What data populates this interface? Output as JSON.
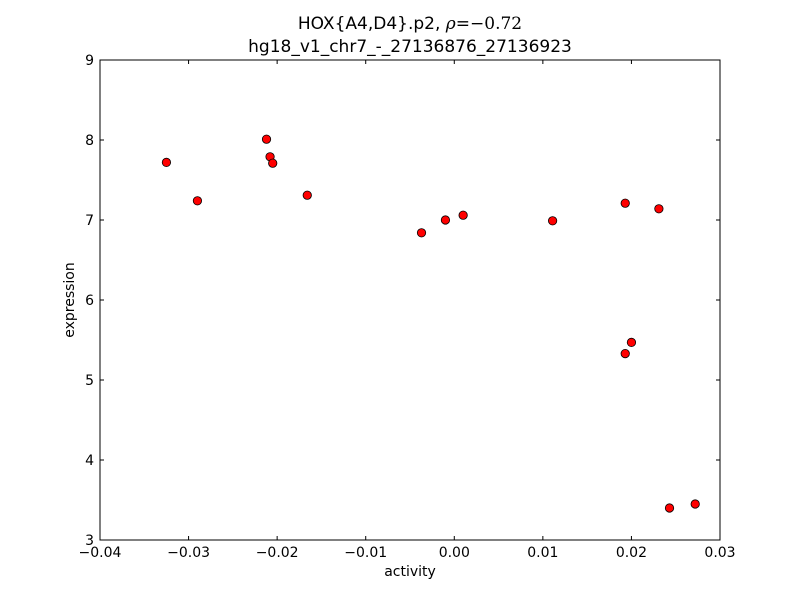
{
  "chart_data": {
    "type": "scatter",
    "title": {
      "prefix": "HOX{A4,D4}.p2, ",
      "symbol": "ρ",
      "operator": "=",
      "value": "−0.72",
      "subtitle": "hg18_v1_chr7_-_27136876_27136923"
    },
    "xlabel": "activity",
    "ylabel": "expression",
    "xlim": [
      -0.04,
      0.03
    ],
    "ylim": [
      3,
      9
    ],
    "xticks": [
      -0.04,
      -0.03,
      -0.02,
      -0.01,
      0.0,
      0.01,
      0.02,
      0.03
    ],
    "xtick_labels": [
      "−0.04",
      "−0.03",
      "−0.02",
      "−0.01",
      "0.00",
      "0.01",
      "0.02",
      "0.03"
    ],
    "yticks": [
      3,
      4,
      5,
      6,
      7,
      8,
      9
    ],
    "ytick_labels": [
      "3",
      "4",
      "5",
      "6",
      "7",
      "8",
      "9"
    ],
    "grid": false,
    "marker_color": "#ff0000",
    "marker_edge_color": "#000000",
    "points": [
      {
        "x": -0.0325,
        "y": 7.72
      },
      {
        "x": -0.029,
        "y": 7.24
      },
      {
        "x": -0.0212,
        "y": 8.01
      },
      {
        "x": -0.0208,
        "y": 7.79
      },
      {
        "x": -0.0205,
        "y": 7.71
      },
      {
        "x": -0.0166,
        "y": 7.31
      },
      {
        "x": -0.0037,
        "y": 6.84
      },
      {
        "x": -0.001,
        "y": 7.0
      },
      {
        "x": 0.001,
        "y": 7.06
      },
      {
        "x": 0.0111,
        "y": 6.99
      },
      {
        "x": 0.0193,
        "y": 7.21
      },
      {
        "x": 0.0231,
        "y": 7.14
      },
      {
        "x": 0.0193,
        "y": 5.33
      },
      {
        "x": 0.02,
        "y": 5.47
      },
      {
        "x": 0.0243,
        "y": 3.4
      },
      {
        "x": 0.0272,
        "y": 3.45
      }
    ]
  }
}
